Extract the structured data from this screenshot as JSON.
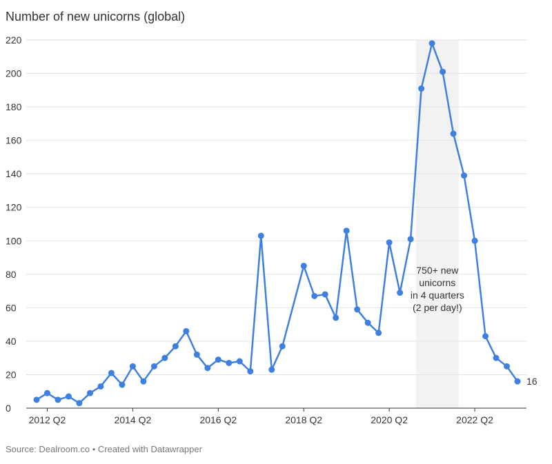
{
  "chart_data": {
    "type": "line",
    "title": "Number of new unicorns (global)",
    "source": "Source: Dealroom.co • Created with Datawrapper",
    "x": [
      "2012 Q1",
      "2012 Q2",
      "2012 Q3",
      "2012 Q4",
      "2013 Q1",
      "2013 Q2",
      "2013 Q3",
      "2013 Q4",
      "2014 Q1",
      "2014 Q2",
      "2014 Q3",
      "2014 Q4",
      "2015 Q1",
      "2015 Q2",
      "2015 Q3",
      "2015 Q4",
      "2016 Q1",
      "2016 Q2",
      "2016 Q3",
      "2016 Q4",
      "2017 Q1",
      "2017 Q2",
      "2017 Q3",
      "2017 Q4",
      "2018 Q2",
      "2018 Q3",
      "2018 Q4",
      "2019 Q1",
      "2019 Q2",
      "2019 Q3",
      "2019 Q4",
      "2020 Q1",
      "2020 Q2",
      "2020 Q3",
      "2020 Q4",
      "2021 Q1",
      "2021 Q2",
      "2021 Q3",
      "2021 Q4",
      "2022 Q1",
      "2022 Q2",
      "2022 Q3",
      "2022 Q4",
      "2023 Q1",
      "2023 Q2"
    ],
    "series": [
      {
        "color": "#3f7fe0",
        "values": [
          5,
          9,
          5,
          7,
          3,
          9,
          13,
          21,
          14,
          25,
          16,
          25,
          30,
          37,
          46,
          32,
          24,
          29,
          27,
          28,
          22,
          103,
          23,
          37,
          85,
          67,
          68,
          54,
          106,
          59,
          51,
          45,
          99,
          69,
          101,
          191,
          218,
          201,
          164,
          139,
          100,
          43,
          30,
          25,
          16
        ]
      }
    ],
    "xticks": [
      "2012 Q2",
      "2014 Q2",
      "2016 Q2",
      "2018 Q2",
      "2020 Q2",
      "2022 Q2"
    ],
    "ylim": [
      0,
      220
    ],
    "yticks": [
      0,
      20,
      40,
      60,
      80,
      100,
      120,
      140,
      160,
      180,
      200,
      220
    ],
    "grid": true,
    "highlight": {
      "from": "2021 Q1",
      "to": "2021 Q4",
      "color": "#f2f2f2",
      "annotation": [
        "750+ new",
        "unicorns",
        "in 4 quarters",
        "(2 per day!)"
      ]
    }
  }
}
